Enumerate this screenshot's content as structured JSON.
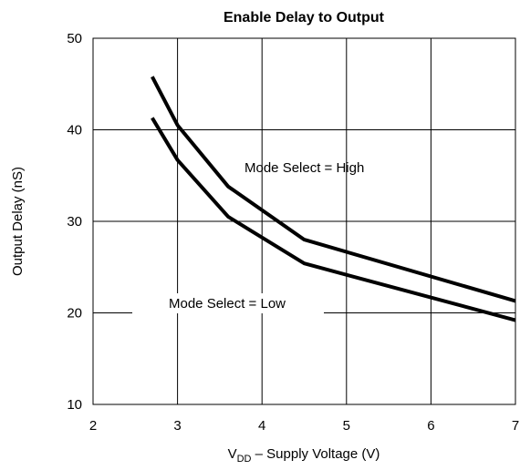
{
  "chart_data": {
    "type": "line",
    "title": "Enable Delay to Output",
    "x_label": {
      "main": "V",
      "sub": "DD",
      "rest": " – Supply Voltage (V)"
    },
    "y_label": "Output Delay (nS)",
    "xlim": [
      2,
      7
    ],
    "xticks": [
      2,
      3,
      4,
      5,
      6,
      7
    ],
    "ylim": [
      10,
      50
    ],
    "yticks": [
      10,
      20,
      30,
      40,
      50
    ],
    "grid": true,
    "series": [
      {
        "color": "#000000",
        "x": [
          2.7,
          3.0,
          3.6,
          4.5,
          7.0
        ],
        "values": [
          45.8,
          40.5,
          33.8,
          28.0,
          21.3
        ]
      },
      {
        "color": "#000000",
        "x": [
          2.7,
          3.0,
          3.6,
          4.5,
          7.0
        ],
        "values": [
          41.3,
          36.7,
          30.5,
          25.4,
          19.2
        ]
      }
    ],
    "annotations": [
      "Mode Select = High",
      "Mode Select = Low"
    ]
  }
}
